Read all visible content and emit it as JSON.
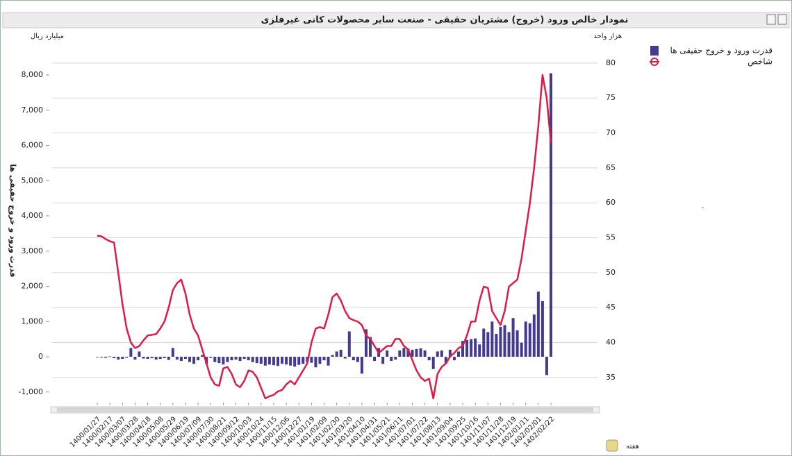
{
  "chart_data": {
    "type": "combo",
    "title": "نمودار خالص ورود (خروج) مشتریان حقیقی - صنعت سایر محصولات کانی غیرفلزی",
    "y_unit": "میلیارد ریال",
    "y2_unit": "هزار واحد",
    "ylabel": "قدرت ورود و خروج حقیقی ها",
    "xlabel": "هفته",
    "grid": true,
    "grid_axis": "y2",
    "legend": "top-right",
    "categories": [
      "1400/01/27",
      null,
      null,
      "1400/02/17",
      null,
      null,
      "1400/03/07",
      null,
      null,
      "1400/03/28",
      null,
      null,
      "1400/04/18",
      null,
      null,
      "1400/05/08",
      null,
      null,
      "1400/05/29",
      null,
      null,
      "1400/06/19",
      null,
      null,
      "1400/07/09",
      null,
      null,
      "1400/07/30",
      null,
      null,
      "1400/08/21",
      null,
      null,
      "1400/09/12",
      null,
      null,
      "1400/10/03",
      null,
      null,
      "1400/10/24",
      null,
      null,
      "1400/11/15",
      null,
      null,
      "1400/12/06",
      null,
      null,
      "1400/12/27",
      null,
      null,
      "1401/01/19",
      null,
      null,
      "1401/02/09",
      null,
      null,
      "1401/02/30",
      null,
      null,
      "1401/03/20",
      null,
      null,
      "1401/04/10",
      null,
      null,
      "1401/04/31",
      null,
      null,
      "1401/05/21",
      null,
      null,
      "1401/06/11",
      null,
      null,
      "1401/07/01",
      null,
      null,
      "1401/07/22",
      null,
      null,
      "1401/08/13",
      null,
      null,
      "1401/09/04",
      null,
      null,
      "1401/09/25",
      null,
      null,
      "1401/10/16",
      null,
      null,
      "1401/11/07",
      null,
      null,
      "1401/11/28",
      null,
      null,
      "1401/12/19",
      null,
      null,
      "1402/01/11",
      null,
      null,
      "1402/02/01",
      null,
      null,
      "1402/02/22"
    ],
    "series": [
      {
        "name": "قدرت ورود و خروج حقیقی ها",
        "type": "bar",
        "color": "#433b8f",
        "values": [
          -10,
          -20,
          -30,
          10,
          -40,
          -80,
          -60,
          -30,
          250,
          -80,
          150,
          -50,
          -60,
          -40,
          -80,
          -60,
          -40,
          -90,
          250,
          -80,
          -120,
          -60,
          -150,
          -200,
          -100,
          50,
          -200,
          -30,
          -150,
          -180,
          -220,
          -150,
          -100,
          -80,
          -120,
          -60,
          -100,
          -150,
          -180,
          -200,
          -250,
          -220,
          -240,
          -260,
          -200,
          -220,
          -250,
          -280,
          -230,
          -200,
          -150,
          -170,
          -300,
          -200,
          -100,
          -250,
          50,
          150,
          200,
          -50,
          720,
          -100,
          -150,
          -480,
          780,
          560,
          -120,
          250,
          -200,
          180,
          -120,
          -80,
          180,
          250,
          230,
          200,
          220,
          240,
          180,
          -100,
          -350,
          150,
          180,
          -200,
          200,
          -100,
          150,
          450,
          480,
          500,
          520,
          350,
          800,
          700,
          1000,
          650,
          850,
          900,
          700,
          1100,
          750,
          400,
          1000,
          950,
          1200,
          1850,
          1580,
          -520,
          8050
        ]
      },
      {
        "name": "شاخص",
        "type": "line",
        "axis": "y2",
        "color": "#e01a45",
        "values": [
          55.3,
          55.2,
          54.8,
          54.5,
          54.3,
          50,
          45.5,
          42,
          40,
          39.2,
          39.5,
          40.3,
          41,
          41.1,
          41.2,
          42,
          43,
          45,
          47.5,
          48.5,
          49,
          47,
          44,
          42,
          41,
          39,
          37,
          35,
          34,
          33.8,
          36.3,
          36.5,
          35.5,
          34,
          33.6,
          34.5,
          36,
          35.8,
          35,
          33.5,
          32,
          32.3,
          32.5,
          33,
          33.2,
          34,
          34.5,
          34,
          35,
          36,
          37,
          40,
          42,
          42.2,
          42,
          44,
          46.5,
          47,
          46,
          44.5,
          43.5,
          43.2,
          43,
          42.5,
          41,
          40.5,
          39.5,
          38.5,
          39,
          39.5,
          39.5,
          40.5,
          40.5,
          39.5,
          39,
          37.5,
          36,
          35,
          34.5,
          34.8,
          32,
          35.5,
          36.5,
          37,
          38,
          38.5,
          39.2,
          39.5,
          41,
          43,
          43,
          46,
          48,
          47.8,
          44.5,
          43.5,
          42.5,
          44.5,
          48,
          48.5,
          49,
          52,
          56,
          60,
          65,
          71,
          78.3,
          75,
          68.5
        ]
      }
    ],
    "ylim": [
      -1300,
      9340
    ],
    "yticks": [
      {
        "value": -1000,
        "label": "-1,000"
      },
      0,
      {
        "value": 1000,
        "label": "1,000"
      },
      {
        "value": 2000,
        "label": "2,000"
      },
      {
        "value": 3000,
        "label": "3,000"
      },
      {
        "value": 4000,
        "label": "4,000"
      },
      {
        "value": 5000,
        "label": "5,000"
      },
      {
        "value": 6000,
        "label": "6,000"
      },
      {
        "value": 7000,
        "label": "7,000"
      },
      {
        "value": 8000,
        "label": "8,000"
      }
    ],
    "y2lim": [
      31.4,
      85.06
    ],
    "y2ticks": [
      35,
      40,
      45,
      50,
      55,
      60,
      65,
      70,
      75,
      80
    ]
  }
}
